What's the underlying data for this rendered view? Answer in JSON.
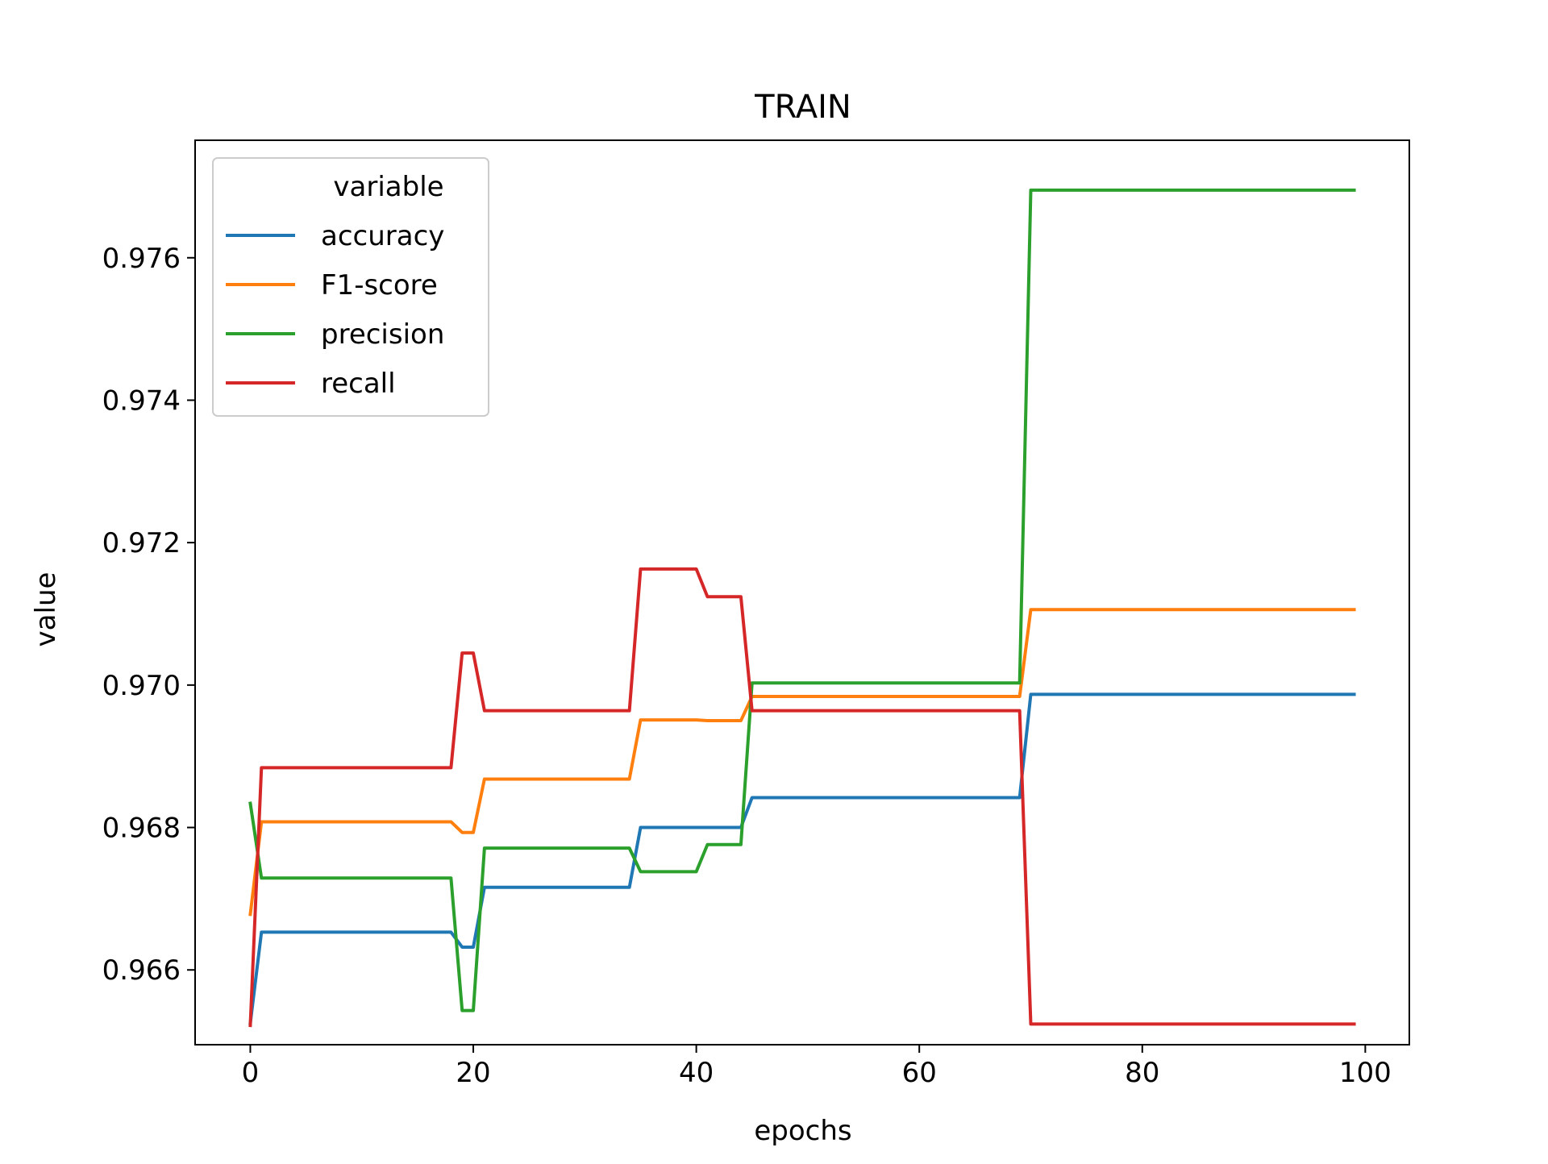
{
  "chart_data": {
    "type": "line",
    "title": "TRAIN",
    "xlabel": "epochs",
    "ylabel": "value",
    "xlim": [
      -4.95,
      103.95
    ],
    "ylim": [
      0.96495,
      0.97765
    ],
    "x_ticks": [
      0,
      20,
      40,
      60,
      80,
      100
    ],
    "y_ticks": [
      0.966,
      0.968,
      0.97,
      0.972,
      0.974,
      0.976
    ],
    "x_tick_labels": [
      "0",
      "20",
      "40",
      "60",
      "80",
      "100"
    ],
    "y_tick_labels": [
      "0.966",
      "0.968",
      "0.970",
      "0.972",
      "0.974",
      "0.976"
    ],
    "grid": false,
    "legend": {
      "title": "variable",
      "placement": "upper-left"
    },
    "series": [
      {
        "name": "accuracy",
        "color": "#1f77b4",
        "points": [
          [
            0,
            0.96525
          ],
          [
            1,
            0.96653
          ],
          [
            18,
            0.96653
          ],
          [
            19,
            0.96632
          ],
          [
            20,
            0.96632
          ],
          [
            21,
            0.96716
          ],
          [
            34,
            0.96716
          ],
          [
            35,
            0.968
          ],
          [
            44,
            0.968
          ],
          [
            45,
            0.96842
          ],
          [
            69,
            0.96842
          ],
          [
            70,
            0.96987
          ],
          [
            99,
            0.96987
          ]
        ]
      },
      {
        "name": "F1-score",
        "color": "#ff7f0e",
        "points": [
          [
            0,
            0.96678
          ],
          [
            1,
            0.96808
          ],
          [
            18,
            0.96808
          ],
          [
            19,
            0.96793
          ],
          [
            20,
            0.96793
          ],
          [
            21,
            0.96868
          ],
          [
            34,
            0.96868
          ],
          [
            35,
            0.96951
          ],
          [
            40,
            0.96951
          ],
          [
            41,
            0.9695
          ],
          [
            44,
            0.9695
          ],
          [
            45,
            0.96984
          ],
          [
            69,
            0.96984
          ],
          [
            70,
            0.97106
          ],
          [
            99,
            0.97106
          ]
        ]
      },
      {
        "name": "precision",
        "color": "#2ca02c",
        "points": [
          [
            0,
            0.96834
          ],
          [
            1,
            0.96729
          ],
          [
            18,
            0.96729
          ],
          [
            19,
            0.96543
          ],
          [
            20,
            0.96543
          ],
          [
            21,
            0.96771
          ],
          [
            34,
            0.96771
          ],
          [
            35,
            0.96738
          ],
          [
            40,
            0.96738
          ],
          [
            41,
            0.96776
          ],
          [
            44,
            0.96776
          ],
          [
            45,
            0.97003
          ],
          [
            69,
            0.97003
          ],
          [
            70,
            0.97695
          ],
          [
            99,
            0.97695
          ]
        ]
      },
      {
        "name": "recall",
        "color": "#d62728",
        "points": [
          [
            0,
            0.96522
          ],
          [
            1,
            0.96884
          ],
          [
            18,
            0.96884
          ],
          [
            19,
            0.97045
          ],
          [
            20,
            0.97045
          ],
          [
            21,
            0.96964
          ],
          [
            34,
            0.96964
          ],
          [
            35,
            0.97163
          ],
          [
            40,
            0.97163
          ],
          [
            41,
            0.97124
          ],
          [
            44,
            0.97124
          ],
          [
            45,
            0.96964
          ],
          [
            69,
            0.96964
          ],
          [
            70,
            0.96524
          ],
          [
            99,
            0.96524
          ]
        ]
      }
    ]
  }
}
